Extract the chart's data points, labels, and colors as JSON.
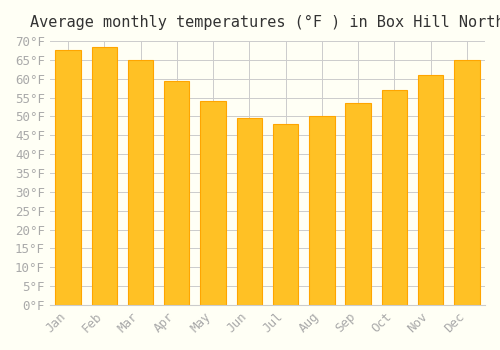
{
  "title": "Average monthly temperatures (°F ) in Box Hill North",
  "months": [
    "Jan",
    "Feb",
    "Mar",
    "Apr",
    "May",
    "Jun",
    "Jul",
    "Aug",
    "Sep",
    "Oct",
    "Nov",
    "Dec"
  ],
  "values": [
    67.5,
    68.5,
    65.0,
    59.5,
    54.0,
    49.5,
    48.0,
    50.0,
    53.5,
    57.0,
    61.0,
    65.0
  ],
  "bar_color_main": "#FFC125",
  "bar_color_edge": "#FFA500",
  "background_color": "#FFFFF5",
  "grid_color": "#CCCCCC",
  "ylim": [
    0,
    70
  ],
  "yticks": [
    0,
    5,
    10,
    15,
    20,
    25,
    30,
    35,
    40,
    45,
    50,
    55,
    60,
    65,
    70
  ],
  "title_fontsize": 11,
  "tick_fontsize": 9,
  "tick_color": "#AAAAAA"
}
